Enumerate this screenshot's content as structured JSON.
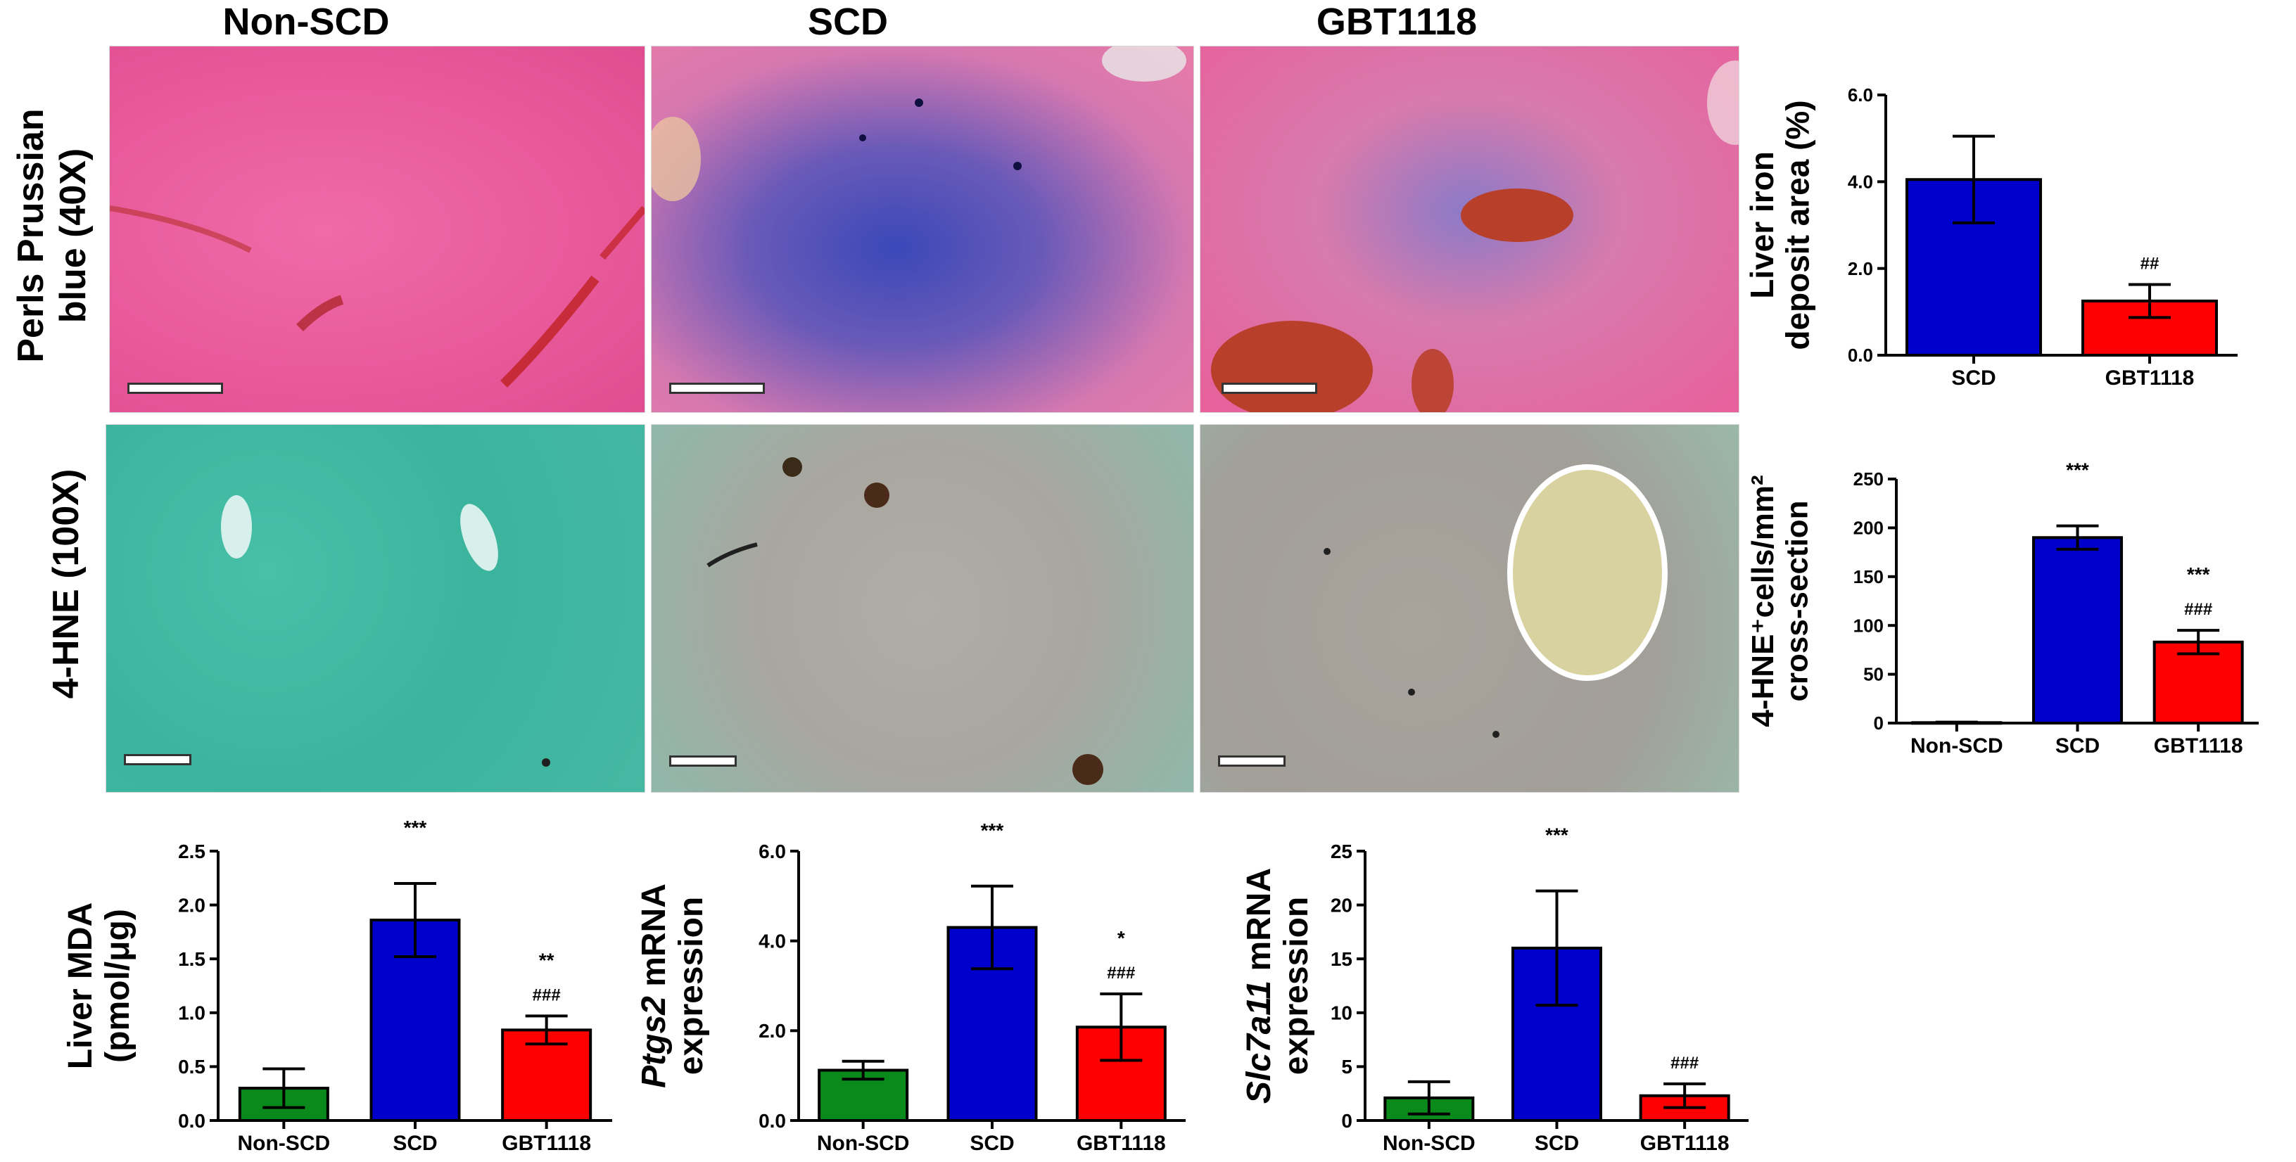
{
  "columns": [
    {
      "name": "col-title-non-scd",
      "label": "Non-SCD"
    },
    {
      "name": "col-title-scd",
      "label": "SCD"
    },
    {
      "name": "col-title-gbt1118",
      "label": "GBT1118"
    }
  ],
  "rows": [
    {
      "name": "row-label-perls",
      "line1": "Perls Prussian",
      "line2": "blue (40X)"
    },
    {
      "name": "row-label-4hne",
      "line1": "4-HNE (100X)",
      "line2": ""
    }
  ],
  "panel_colors": {
    "perls_pink": "#e8599a",
    "perls_blue": "#4a4fb0",
    "hne_teal": "#2fb8a0",
    "hne_gray": "#a8a39d",
    "bar_green": "#0a8a1a",
    "bar_blue": "#0000cc",
    "bar_red": "#ff0000"
  },
  "chart_data": [
    {
      "id": "iron",
      "type": "bar",
      "categories": [
        "SCD",
        "GBT1118"
      ],
      "values": [
        4.05,
        1.25
      ],
      "errors": [
        1.0,
        0.38
      ],
      "colors": [
        "#0000cc",
        "#ff0000"
      ],
      "ylabel_lines": [
        "Liver iron",
        "deposit area (%)"
      ],
      "ylim": [
        0,
        6.0
      ],
      "yticks": [
        0,
        2.0,
        4.0,
        6.0
      ],
      "ytick_labels": [
        "0.0",
        "2.0",
        "4.0",
        "6.0"
      ],
      "annotations": [
        [
          "",
          ""
        ],
        [
          "",
          "##"
        ]
      ]
    },
    {
      "id": "hne",
      "type": "bar",
      "categories": [
        "Non-SCD",
        "SCD",
        "GBT1118"
      ],
      "values": [
        0.5,
        190,
        83
      ],
      "errors": [
        0.5,
        12,
        12
      ],
      "colors": [
        "#0a8a1a",
        "#0000cc",
        "#ff0000"
      ],
      "ylabel_lines": [
        "4-HNE⁺cells/mm²",
        "cross-section"
      ],
      "ylim": [
        0,
        250
      ],
      "yticks": [
        0,
        50,
        100,
        150,
        200,
        250
      ],
      "ytick_labels": [
        "0",
        "50",
        "100",
        "150",
        "200",
        "250"
      ],
      "annotations": [
        [
          "",
          ""
        ],
        [
          "***",
          ""
        ],
        [
          "***",
          "###"
        ]
      ]
    },
    {
      "id": "mda",
      "type": "bar",
      "categories": [
        "Non-SCD",
        "SCD",
        "GBT1118"
      ],
      "values": [
        0.3,
        1.86,
        0.84
      ],
      "errors": [
        0.18,
        0.34,
        0.13
      ],
      "colors": [
        "#0a8a1a",
        "#0000cc",
        "#ff0000"
      ],
      "ylabel_lines": [
        "Liver MDA",
        "(pmol/μg)"
      ],
      "ylim": [
        0,
        2.5
      ],
      "yticks": [
        0,
        0.5,
        1.0,
        1.5,
        2.0,
        2.5
      ],
      "ytick_labels": [
        "0.0",
        "0.5",
        "1.0",
        "1.5",
        "2.0",
        "2.5"
      ],
      "annotations": [
        [
          "",
          ""
        ],
        [
          "***",
          ""
        ],
        [
          "**",
          "###"
        ]
      ]
    },
    {
      "id": "ptgs2",
      "type": "bar",
      "categories": [
        "Non-SCD",
        "SCD",
        "GBT1118"
      ],
      "values": [
        1.12,
        4.3,
        2.08
      ],
      "errors": [
        0.2,
        0.92,
        0.74
      ],
      "colors": [
        "#0a8a1a",
        "#0000cc",
        "#ff0000"
      ],
      "ylabel_lines": [
        "Ptgs2 mRNA",
        "expression"
      ],
      "ylabel_italic_word": "Ptgs2",
      "ylim": [
        0,
        6.0
      ],
      "yticks": [
        0,
        2.0,
        4.0,
        6.0
      ],
      "ytick_labels": [
        "0.0",
        "2.0",
        "4.0",
        "6.0"
      ],
      "annotations": [
        [
          "",
          ""
        ],
        [
          "***",
          ""
        ],
        [
          "*",
          "###"
        ]
      ]
    },
    {
      "id": "slc7a11",
      "type": "bar",
      "categories": [
        "Non-SCD",
        "SCD",
        "GBT1118"
      ],
      "values": [
        2.1,
        16,
        2.3
      ],
      "errors": [
        1.5,
        5.3,
        1.1
      ],
      "colors": [
        "#0a8a1a",
        "#0000cc",
        "#ff0000"
      ],
      "ylabel_lines": [
        "Slc7a11 mRNA",
        "expression"
      ],
      "ylabel_italic_word": "Slc7a11",
      "ylim": [
        0,
        25
      ],
      "yticks": [
        0,
        5,
        10,
        15,
        20,
        25
      ],
      "ytick_labels": [
        "0",
        "5",
        "10",
        "15",
        "20",
        "25"
      ],
      "annotations": [
        [
          "",
          ""
        ],
        [
          "***",
          ""
        ],
        [
          "",
          "###"
        ]
      ]
    }
  ]
}
